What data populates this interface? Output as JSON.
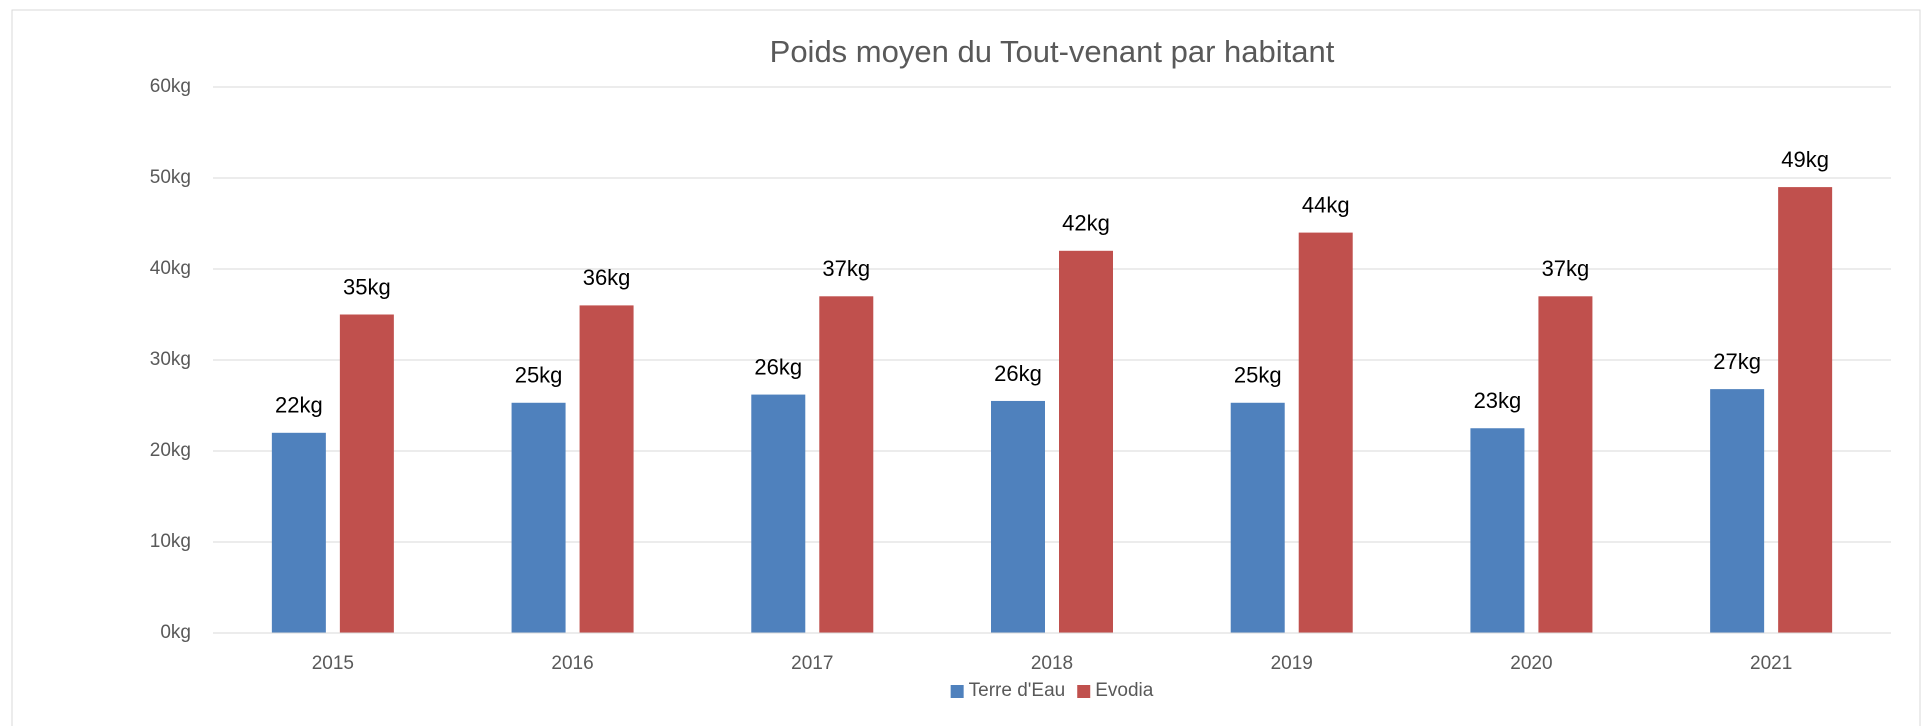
{
  "chart_data": {
    "type": "bar",
    "title": "Poids moyen du Tout-venant par habitant",
    "categories": [
      "2015",
      "2016",
      "2017",
      "2018",
      "2019",
      "2020",
      "2021"
    ],
    "series": [
      {
        "name": "Terre d'Eau",
        "color": "#4f81bd",
        "values": [
          22,
          25.3,
          26.2,
          25.5,
          25.3,
          22.5,
          26.8
        ],
        "value_labels": [
          "22kg",
          "25kg",
          "26kg",
          "26kg",
          "25kg",
          "23kg",
          "27kg"
        ]
      },
      {
        "name": "Evodia",
        "color": "#c0504d",
        "values": [
          35,
          36,
          37,
          42,
          44,
          37,
          49
        ],
        "value_labels": [
          "35kg",
          "36kg",
          "37kg",
          "42kg",
          "44kg",
          "37kg",
          "49kg"
        ]
      }
    ],
    "ylim": [
      0,
      60
    ],
    "yticks": [
      {
        "value": 0,
        "label": "0kg"
      },
      {
        "value": 10,
        "label": "10kg"
      },
      {
        "value": 20,
        "label": "20kg"
      },
      {
        "value": 30,
        "label": "30kg"
      },
      {
        "value": 40,
        "label": "40kg"
      },
      {
        "value": 50,
        "label": "50kg"
      },
      {
        "value": 60,
        "label": "60kg"
      }
    ],
    "grid": true,
    "legend": "bottom"
  }
}
